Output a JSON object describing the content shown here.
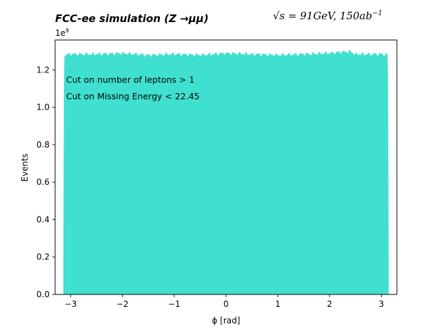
{
  "header": {
    "title_left": "FCC-ee simulation (Z →μμ)",
    "title_right_sqrt": "√s = 91GeV, 150ab",
    "title_right_exp": "−1"
  },
  "annotations": [
    "Cut on number of leptons > 1",
    "Cut on Missing Energy < 22.45"
  ],
  "chart_data": {
    "type": "area",
    "xlabel": "ϕ [rad]",
    "ylabel": "Events",
    "offset_base": "1e",
    "offset_exp": "9",
    "xlim": [
      -3.3,
      3.3
    ],
    "ylim": [
      0,
      1.36
    ],
    "x_ticks": [
      -3,
      -2,
      -1,
      0,
      1,
      2,
      3
    ],
    "y_ticks": [
      0.0,
      0.2,
      0.4,
      0.6,
      0.8,
      1.0,
      1.2
    ],
    "x_tick_labels": [
      "−3",
      "−2",
      "−1",
      "0",
      "1",
      "2",
      "3"
    ],
    "y_tick_labels": [
      "0.0",
      "0.2",
      "0.4",
      "0.6",
      "0.8",
      "1.0",
      "1.2"
    ],
    "x": [
      -3.1416,
      -3.14,
      -3.13,
      -3.12,
      -3.0,
      -2.5,
      -2.0,
      -1.5,
      -1.0,
      -0.5,
      0.0,
      0.5,
      1.0,
      1.5,
      2.0,
      2.4,
      2.5,
      3.0,
      3.12,
      3.13,
      3.14,
      3.1416
    ],
    "values": [
      0.0,
      0.3,
      1.1,
      1.28,
      1.285,
      1.285,
      1.29,
      1.28,
      1.285,
      1.28,
      1.29,
      1.285,
      1.28,
      1.285,
      1.29,
      1.3,
      1.285,
      1.285,
      1.28,
      1.1,
      0.3,
      0.0
    ],
    "grid": false,
    "color": "#40e0d0"
  }
}
